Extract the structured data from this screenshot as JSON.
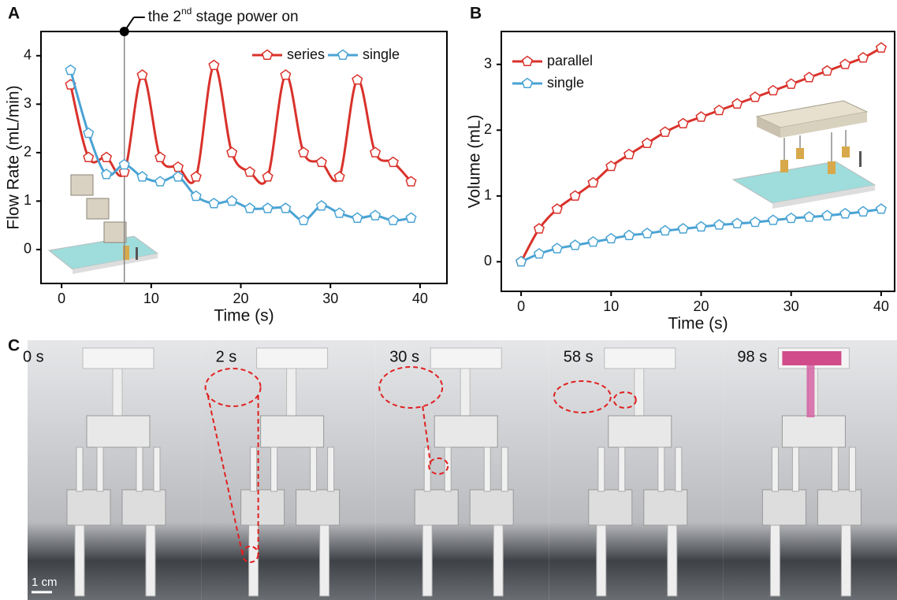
{
  "panels": [
    "A",
    "B",
    "C"
  ],
  "chart_data": [
    {
      "type": "line",
      "ylabel": "Flow Rate (mL/min)",
      "xlabel": "Time (s)",
      "x": [
        1,
        3,
        5,
        7,
        9,
        11,
        13,
        15,
        17,
        19,
        21,
        23,
        25,
        27,
        29,
        31,
        33,
        35,
        37,
        39
      ],
      "series": [
        {
          "name": "series",
          "color": "#d9322b",
          "values": [
            3.4,
            1.9,
            1.9,
            1.6,
            3.6,
            1.9,
            1.7,
            1.5,
            3.8,
            2.0,
            1.6,
            1.5,
            3.6,
            2.0,
            1.8,
            1.5,
            3.5,
            2.0,
            1.8,
            1.4
          ]
        },
        {
          "name": "single",
          "color": "#4aa3d4",
          "values": [
            3.7,
            2.4,
            1.55,
            1.75,
            1.5,
            1.4,
            1.5,
            1.1,
            0.95,
            1.0,
            0.85,
            0.85,
            0.85,
            0.6,
            0.9,
            0.75,
            0.65,
            0.7,
            0.6,
            0.65
          ]
        }
      ],
      "xlim": [
        -2.3,
        43
      ],
      "ylim": [
        -0.7,
        4.5
      ],
      "xticks": [
        0,
        10,
        20,
        30,
        40
      ],
      "yticks": [
        0,
        1,
        2,
        3,
        4
      ],
      "legend": "upper right",
      "annotation": {
        "x": 7,
        "text": [
          "the 2",
          "nd",
          " stage power on"
        ]
      }
    },
    {
      "type": "line",
      "ylabel": "Volume (mL)",
      "xlabel": "Time (s)",
      "x": [
        0,
        2,
        4,
        6,
        8,
        10,
        12,
        14,
        16,
        18,
        20,
        22,
        24,
        26,
        28,
        30,
        32,
        34,
        36,
        38,
        40
      ],
      "series": [
        {
          "name": "parallel",
          "color": "#d9322b",
          "values": [
            0,
            0.5,
            0.8,
            1.0,
            1.2,
            1.45,
            1.63,
            1.8,
            1.97,
            2.1,
            2.2,
            2.3,
            2.4,
            2.5,
            2.6,
            2.7,
            2.8,
            2.9,
            3.0,
            3.1,
            3.25
          ]
        },
        {
          "name": "single",
          "color": "#4aa3d4",
          "values": [
            0,
            0.12,
            0.2,
            0.25,
            0.3,
            0.35,
            0.4,
            0.43,
            0.47,
            0.5,
            0.53,
            0.56,
            0.58,
            0.6,
            0.63,
            0.66,
            0.68,
            0.7,
            0.73,
            0.76,
            0.8
          ]
        }
      ],
      "xlim": [
        -2.2,
        41.5
      ],
      "ylim": [
        -0.45,
        3.5
      ],
      "xticks": [
        0,
        10,
        20,
        30,
        40
      ],
      "yticks": [
        0,
        1,
        2,
        3
      ],
      "legend": "upper left"
    }
  ],
  "photos": {
    "labels": [
      "0 s",
      "2 s",
      "30 s",
      "58 s",
      "98 s"
    ],
    "scale_bar": "1 cm"
  }
}
